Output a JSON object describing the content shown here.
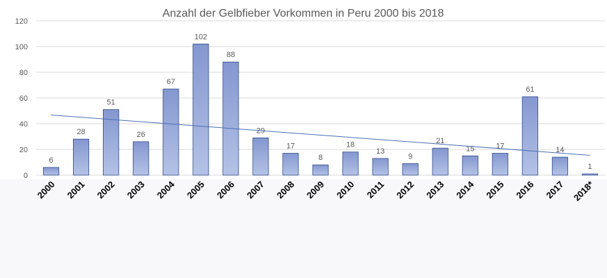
{
  "chart_data": {
    "type": "bar",
    "title": "Anzahl der Gelbfieber Vorkommen in Peru 2000 bis 2018",
    "categories": [
      "2000",
      "2001",
      "2002",
      "2003",
      "2004",
      "2005",
      "2006",
      "2007",
      "2008",
      "2009",
      "2010",
      "2011",
      "2012",
      "2013",
      "2014",
      "2015",
      "2016",
      "2017",
      "2018*"
    ],
    "values": [
      6,
      28,
      51,
      26,
      67,
      102,
      88,
      29,
      17,
      8,
      18,
      13,
      9,
      21,
      15,
      17,
      61,
      14,
      1
    ],
    "color": "#8fa6d8",
    "ylim": [
      0,
      120
    ],
    "yticks": [
      0,
      20,
      40,
      60,
      80,
      100,
      120
    ],
    "grid": true,
    "trendline": true
  }
}
